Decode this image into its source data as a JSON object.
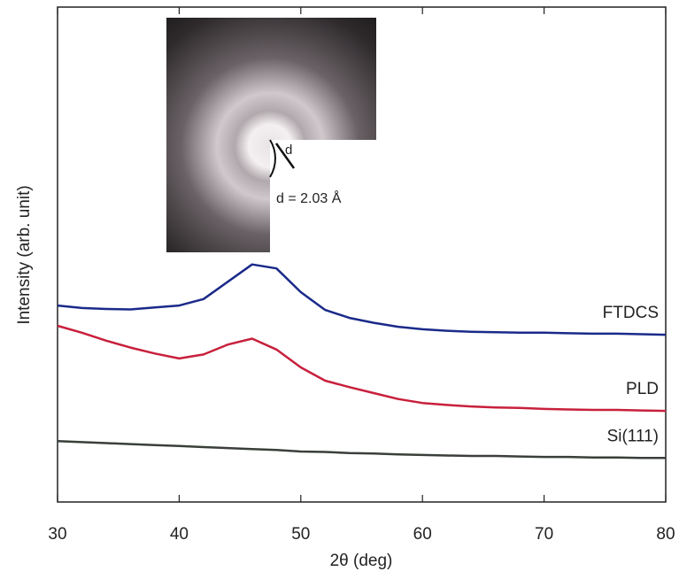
{
  "chart_data": {
    "type": "line",
    "ylabel": "Intensity (arb. unit)",
    "xlabel": "2θ (deg)",
    "annotations": [
      "d",
      "d = 2.03 Å"
    ],
    "x": [
      30,
      32,
      34,
      36,
      38,
      40,
      42,
      44,
      46,
      48,
      50,
      52,
      54,
      56,
      58,
      60,
      62,
      64,
      66,
      68,
      70,
      72,
      74,
      76,
      78,
      80
    ],
    "series": [
      {
        "name": "FTDCS",
        "color": "#1a2a8a",
        "values": [
          39.7,
          39.2,
          39.0,
          38.9,
          39.3,
          39.7,
          41.0,
          44.5,
          48.0,
          47.2,
          42.4,
          38.8,
          37.2,
          36.2,
          35.4,
          34.9,
          34.6,
          34.4,
          34.3,
          34.2,
          34.2,
          34.1,
          34.0,
          34.0,
          33.9,
          33.8
        ]
      },
      {
        "name": "PLD",
        "color": "#c8203c",
        "values": [
          35.6,
          34.2,
          32.6,
          31.2,
          30.0,
          29.0,
          29.8,
          31.8,
          33.0,
          30.8,
          27.2,
          24.5,
          23.2,
          22.0,
          20.8,
          20.0,
          19.6,
          19.3,
          19.1,
          19.0,
          18.8,
          18.7,
          18.6,
          18.6,
          18.5,
          18.4
        ]
      },
      {
        "name": "Si(111)",
        "color": "#3a3f3a",
        "values": [
          12.3,
          12.1,
          11.9,
          11.7,
          11.5,
          11.3,
          11.1,
          10.9,
          10.7,
          10.5,
          10.2,
          10.1,
          9.9,
          9.8,
          9.6,
          9.5,
          9.4,
          9.3,
          9.3,
          9.2,
          9.1,
          9.1,
          9.0,
          9.0,
          8.9,
          8.9
        ]
      }
    ],
    "xlim": [
      30,
      80
    ],
    "xticks": [
      30,
      40,
      50,
      60,
      70,
      80
    ],
    "ylim": [
      0,
      100
    ]
  }
}
